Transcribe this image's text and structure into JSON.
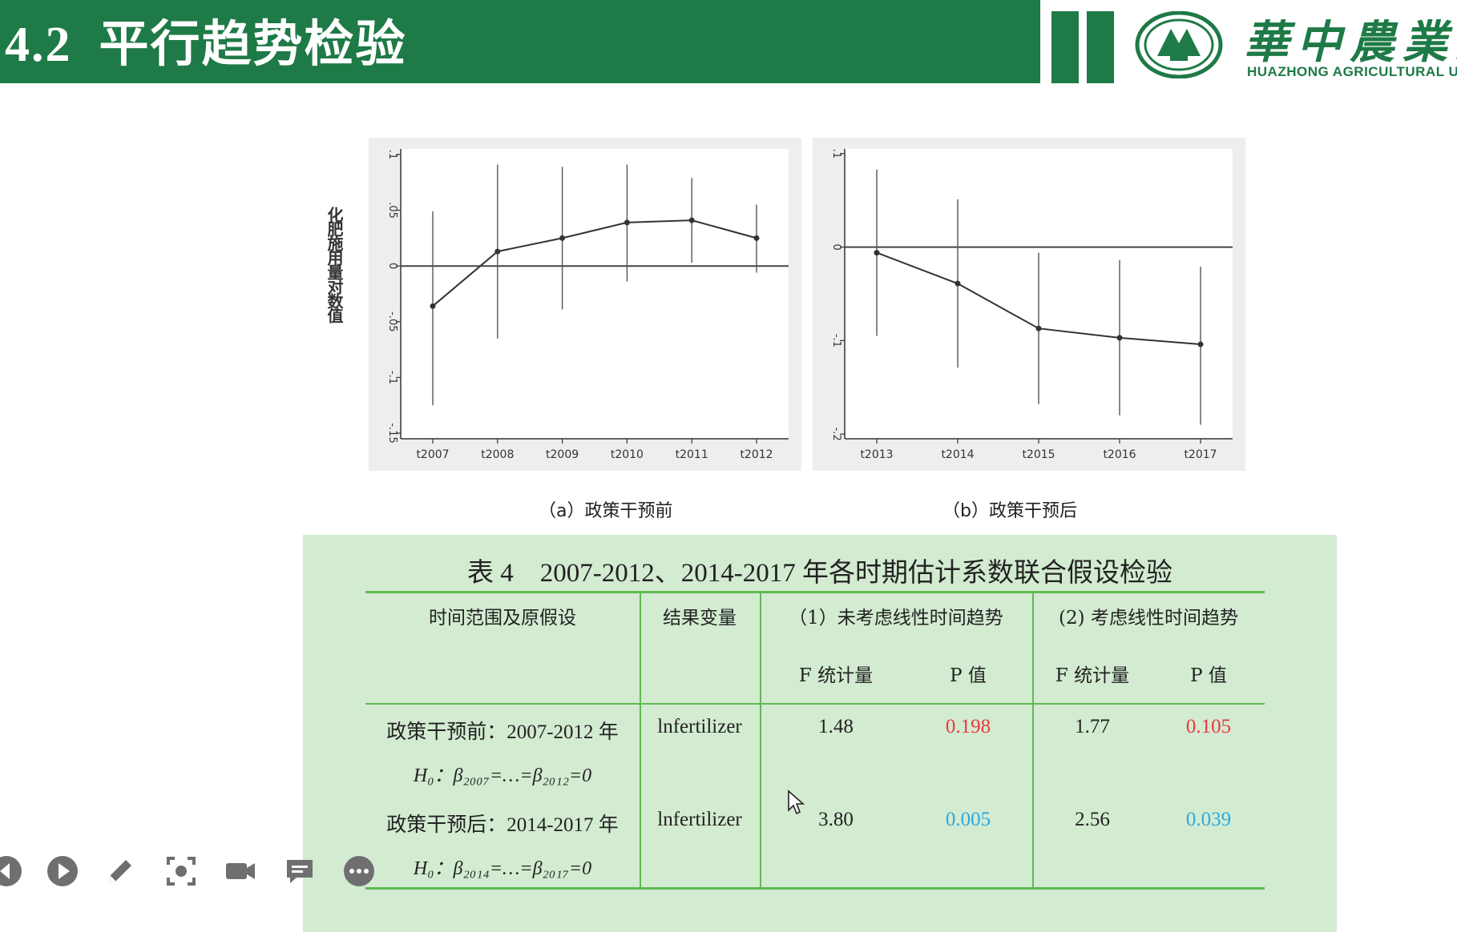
{
  "header": {
    "number": "4.2",
    "title": "平行趋势检验",
    "brand_color": "#1e7a46",
    "logo_cn": "華中農業大",
    "logo_en": "HUAZHONG   AGRICULTURAL   U"
  },
  "charts": {
    "ylabel": "化肥施用量对数值",
    "captions": [
      "（a）政策干预前",
      "（b）政策干预后"
    ]
  },
  "chart_data": [
    {
      "type": "line",
      "title": "",
      "xlabel": "",
      "ylabel": "化肥施用量对数值",
      "categories": [
        "t2007",
        "t2008",
        "t2009",
        "t2010",
        "t2011",
        "t2012"
      ],
      "values": [
        -0.036,
        0.013,
        0.025,
        0.039,
        0.041,
        0.025
      ],
      "ci_low": [
        -0.125,
        -0.065,
        -0.039,
        -0.014,
        0.003,
        -0.006
      ],
      "ci_high": [
        0.049,
        0.091,
        0.089,
        0.091,
        0.079,
        0.055
      ],
      "yticks": [
        0.1,
        0.05,
        0,
        -0.05,
        -0.1,
        -0.15
      ],
      "yticklabels": [
        ".1",
        ".05",
        "0",
        "-.05",
        "-.1",
        "-.15"
      ],
      "ylim": [
        -0.155,
        0.105
      ],
      "reference_line": 0,
      "grid": false
    },
    {
      "type": "line",
      "title": "",
      "xlabel": "",
      "ylabel": "",
      "categories": [
        "t2013",
        "t2014",
        "t2015",
        "t2016",
        "t2017"
      ],
      "values": [
        -0.006,
        -0.039,
        -0.087,
        -0.097,
        -0.104
      ],
      "ci_low": [
        -0.095,
        -0.129,
        -0.168,
        -0.18,
        -0.19
      ],
      "ci_high": [
        0.083,
        0.051,
        -0.006,
        -0.014,
        -0.021
      ],
      "yticks": [
        0.1,
        0,
        -0.1,
        -0.2
      ],
      "yticklabels": [
        ".1",
        "0",
        "-.1",
        "-.2"
      ],
      "ylim": [
        -0.205,
        0.105
      ],
      "reference_line": 0,
      "grid": false
    }
  ],
  "table": {
    "title": "表 4　2007-2012、2014-2017 年各时期估计系数联合假设检验",
    "headers": {
      "col1": "时间范围及原假设",
      "col2": "结果变量",
      "col3": "（1）未考虑线性时间趋势",
      "col4": "(2) 考虑线性时间趋势",
      "f_stat": "F 统计量",
      "p_value": "P 值"
    },
    "rows": [
      {
        "period": "政策干预前：2007-2012 年",
        "hypothesis": "H₀：β₂₀₀₇=…=β₂₀₁₂=0",
        "variable": "lnfertilizer",
        "f1": "1.48",
        "p1": "0.198",
        "f2": "1.77",
        "p2": "0.105"
      },
      {
        "period": "政策干预后：2014-2017 年",
        "hypothesis": "H₀：β₂₀₁₄=…=β₂₀₁₇=0",
        "variable": "lnfertilizer",
        "f1": "3.80",
        "p1": "0.005",
        "f2": "2.56",
        "p2": "0.039"
      }
    ],
    "colors": {
      "insignificant": "#e8393f",
      "significant": "#2aa9e0",
      "panel": "#d3ebd1",
      "rule": "#5fba52"
    }
  },
  "toolbar": {
    "icons": [
      "prev-icon",
      "play-icon",
      "pen-icon",
      "screenshot-icon",
      "video-icon",
      "comment-icon",
      "more-icon"
    ]
  }
}
